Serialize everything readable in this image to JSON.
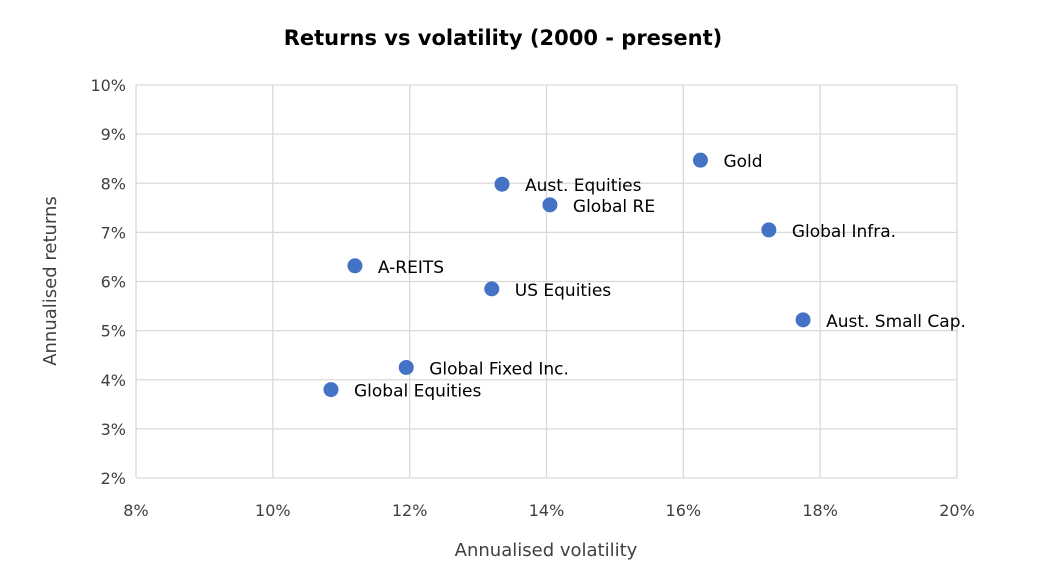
{
  "chart_data": {
    "type": "scatter",
    "title": "Returns vs volatility (2000 - present)",
    "xlabel": "Annualised volatility",
    "ylabel": "Annualised returns",
    "xlim": [
      8,
      20
    ],
    "ylim": [
      2,
      10
    ],
    "x_ticks": [
      8,
      10,
      12,
      14,
      16,
      18,
      20
    ],
    "y_ticks": [
      2,
      3,
      4,
      5,
      6,
      7,
      8,
      9,
      10
    ],
    "x_tick_labels": [
      "8%",
      "10%",
      "12%",
      "14%",
      "16%",
      "18%",
      "20%"
    ],
    "y_tick_labels": [
      "2%",
      "3%",
      "4%",
      "5%",
      "6%",
      "7%",
      "8%",
      "9%",
      "10%"
    ],
    "grid": true,
    "marker_color": "#4472c4",
    "points": [
      {
        "label": "Gold",
        "x": 16.25,
        "y": 8.47
      },
      {
        "label": "Aust. Equities",
        "x": 13.35,
        "y": 7.98
      },
      {
        "label": "Global RE",
        "x": 14.05,
        "y": 7.56
      },
      {
        "label": "Global Infra.",
        "x": 17.25,
        "y": 7.05
      },
      {
        "label": "A-REITS",
        "x": 11.2,
        "y": 6.32
      },
      {
        "label": "US Equities",
        "x": 13.2,
        "y": 5.85
      },
      {
        "label": "Aust. Small Cap.",
        "x": 17.75,
        "y": 5.22
      },
      {
        "label": "Global Fixed Inc.",
        "x": 11.95,
        "y": 4.25
      },
      {
        "label": "Global Equities",
        "x": 10.85,
        "y": 3.8
      }
    ]
  }
}
